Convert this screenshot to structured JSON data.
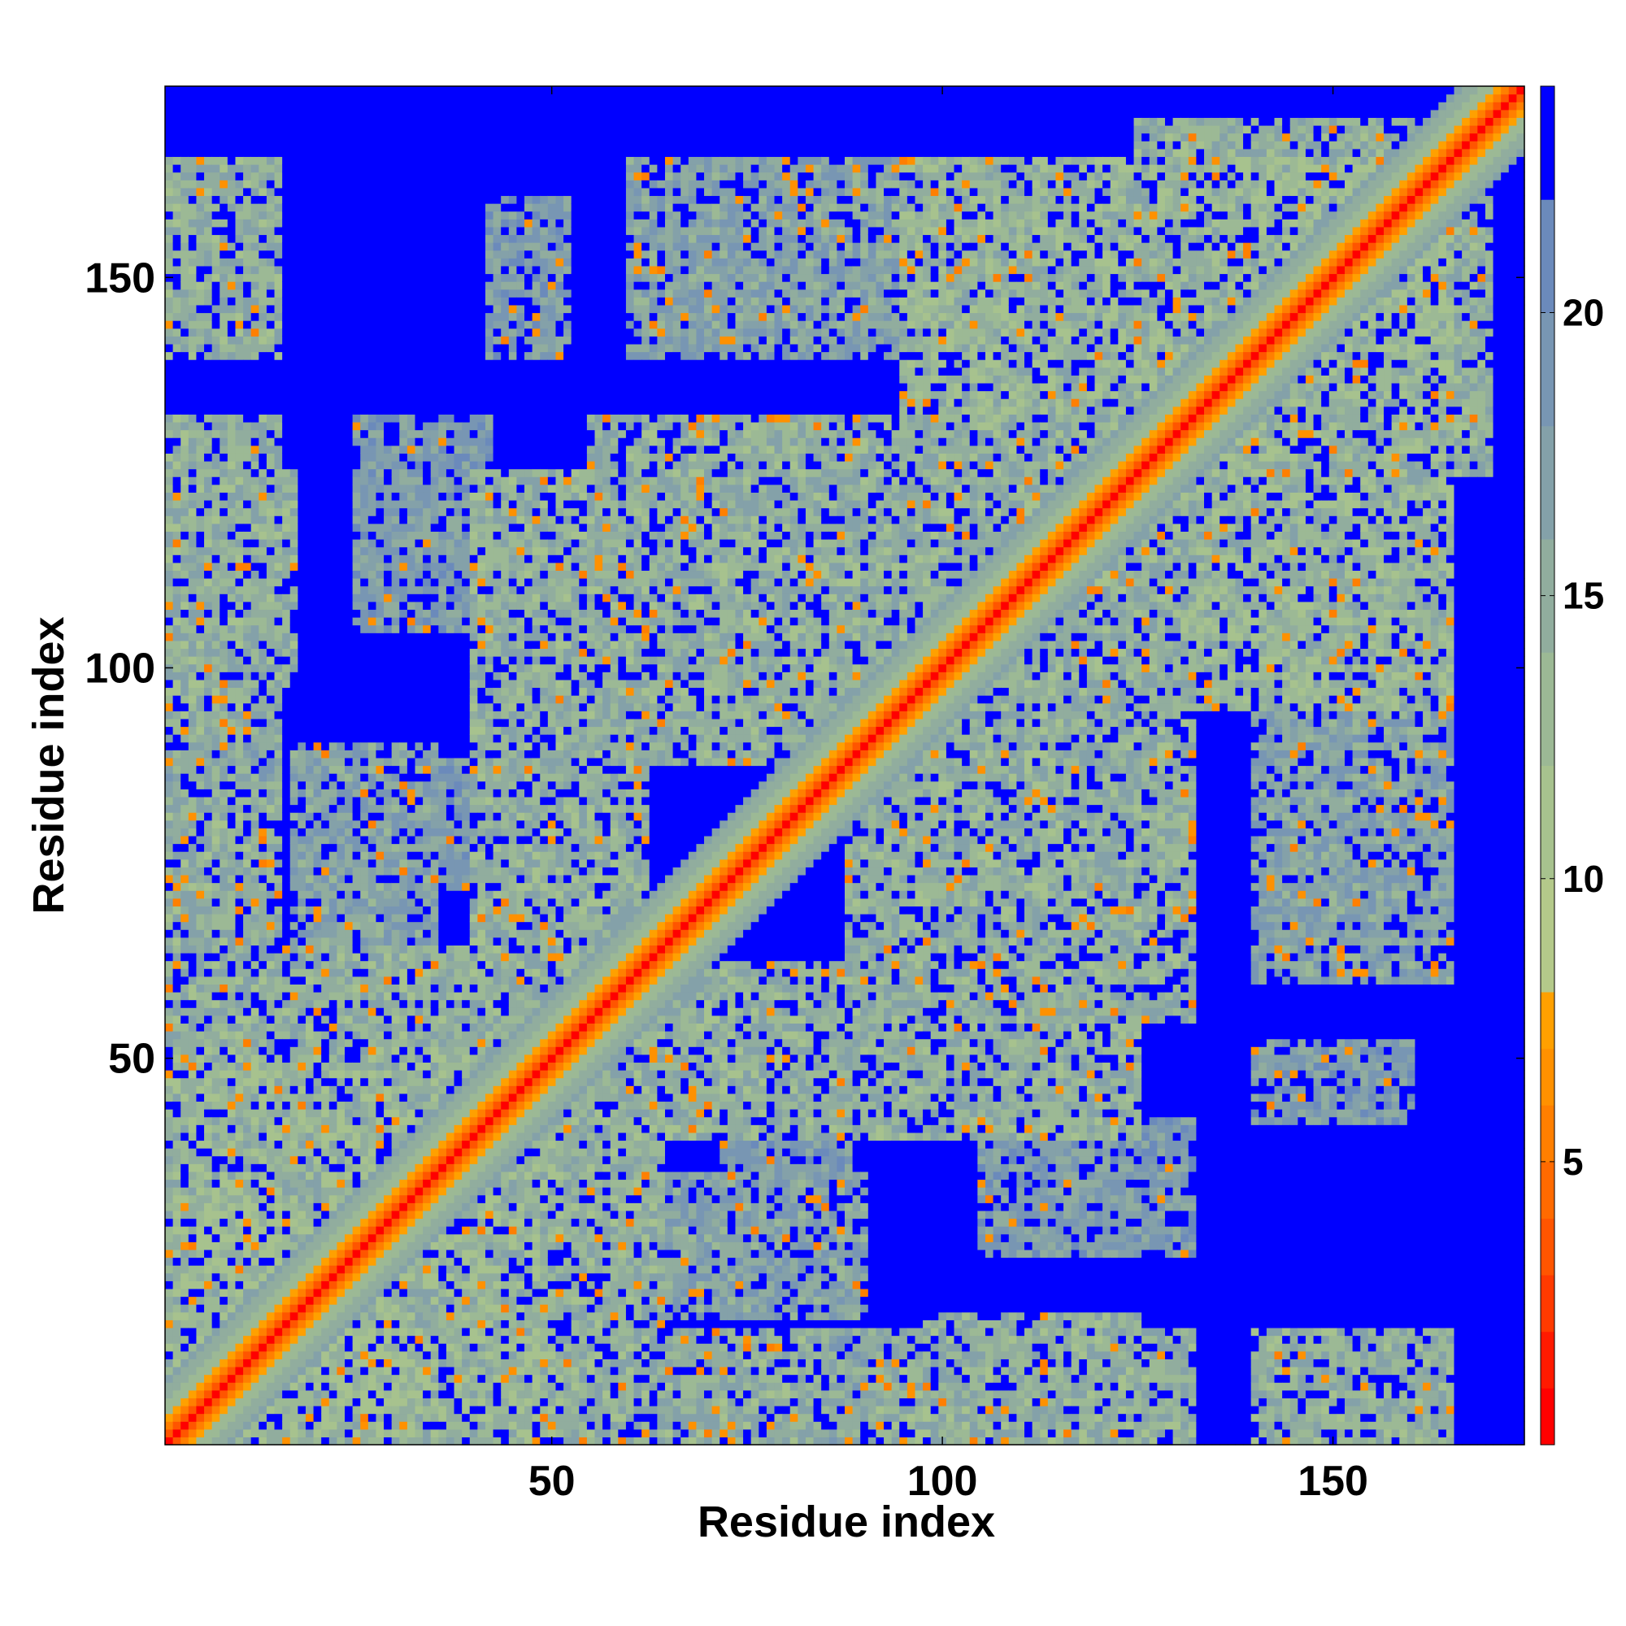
{
  "chart_data": {
    "type": "heatmap",
    "title": "",
    "xlabel": "Residue index",
    "ylabel": "Residue index",
    "n_residues": 174,
    "xlim": [
      0.5,
      174.5
    ],
    "ylim": [
      0.5,
      174.5
    ],
    "x_ticks": [
      50,
      100,
      150
    ],
    "y_ticks": [
      50,
      100,
      150
    ],
    "colorbar": {
      "range": [
        0,
        24
      ],
      "ticks": [
        5,
        10,
        15,
        20
      ],
      "levels": [
        {
          "upper": 1,
          "color": "#ff0000"
        },
        {
          "upper": 2,
          "color": "#ff1a00"
        },
        {
          "upper": 3,
          "color": "#ff3a00"
        },
        {
          "upper": 4,
          "color": "#ff5500"
        },
        {
          "upper": 5,
          "color": "#ff6a00"
        },
        {
          "upper": 6,
          "color": "#ff7f00"
        },
        {
          "upper": 7,
          "color": "#ff9100"
        },
        {
          "upper": 8,
          "color": "#ffa000"
        },
        {
          "upper": 10,
          "color": "#b4c98a"
        },
        {
          "upper": 12,
          "color": "#a7c28e"
        },
        {
          "upper": 14,
          "color": "#9cb995"
        },
        {
          "upper": 16,
          "color": "#91ad9e"
        },
        {
          "upper": 18,
          "color": "#84a1a9"
        },
        {
          "upper": 20,
          "color": "#7896b3"
        },
        {
          "upper": 22,
          "color": "#6b8abb"
        },
        {
          "upper": 24,
          "color": "#0000ff"
        }
      ]
    },
    "grid": false,
    "legend": "colorbar-right",
    "description_of_values": "pairwise residue distance map; diagonal band low (red), contact clusters mid (green-grey), background high (blue)",
    "contact_blocks": [
      {
        "i": [
          1,
          50
        ],
        "j": [
          1,
          50
        ],
        "v": 13
      },
      {
        "i": [
          1,
          50
        ],
        "j": [
          38,
          64
        ],
        "v": 14
      },
      {
        "i": [
          1,
          17
        ],
        "j": [
          98,
          125
        ],
        "v": 14
      },
      {
        "i": [
          1,
          14
        ],
        "j": [
          140,
          159
        ],
        "v": 14
      },
      {
        "i": [
          1,
          14
        ],
        "j": [
          63,
          84
        ],
        "v": 14
      },
      {
        "i": [
          17,
          35
        ],
        "j": [
          60,
          90
        ],
        "v": 16
      },
      {
        "i": [
          25,
          33
        ],
        "j": [
          66,
          86
        ],
        "v": 16
      },
      {
        "i": [
          40,
          62
        ],
        "j": [
          60,
          125
        ],
        "v": 14
      },
      {
        "i": [
          42,
          52
        ],
        "j": [
          140,
          160
        ],
        "v": 17
      },
      {
        "i": [
          55,
          90
        ],
        "j": [
          100,
          128
        ],
        "v": 14
      },
      {
        "i": [
          65,
          90
        ],
        "j": [
          1,
          15
        ],
        "v": 15
      },
      {
        "i": [
          72,
          88
        ],
        "j": [
          25,
          42
        ],
        "v": 17
      },
      {
        "i": [
          88,
          132
        ],
        "j": [
          55,
          120
        ],
        "v": 14
      },
      {
        "i": [
          90,
          132
        ],
        "j": [
          1,
          15
        ],
        "v": 14
      },
      {
        "i": [
          105,
          132
        ],
        "j": [
          25,
          42
        ],
        "v": 17
      },
      {
        "i": [
          95,
          160
        ],
        "j": [
          100,
          165
        ],
        "v": 13
      },
      {
        "i": [
          140,
          165
        ],
        "j": [
          1,
          15
        ],
        "v": 14
      },
      {
        "i": [
          140,
          165
        ],
        "j": [
          60,
          100
        ],
        "v": 16
      },
      {
        "i": [
          125,
          165
        ],
        "j": [
          140,
          170
        ],
        "v": 14
      }
    ]
  }
}
